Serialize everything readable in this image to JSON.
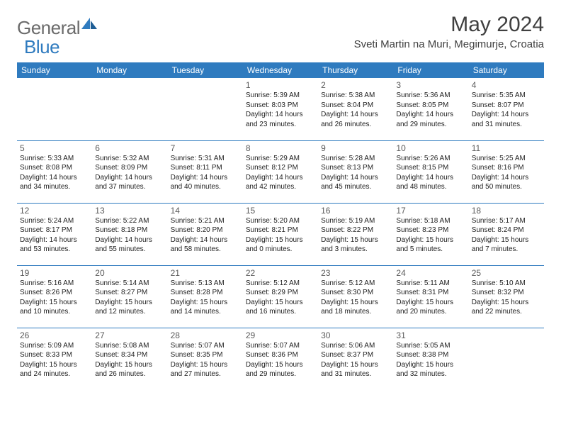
{
  "logo": {
    "part1": "General",
    "part2": "Blue"
  },
  "header": {
    "month_title": "May 2024",
    "location": "Sveti Martin na Muri, Megimurje, Croatia"
  },
  "colors": {
    "header_bg": "#2f7bbf",
    "header_text": "#ffffff",
    "rule": "#2f7bbf",
    "logo_gray": "#6b6b6b",
    "logo_blue": "#2f7bbf",
    "title_color": "#404040"
  },
  "weekdays": [
    "Sunday",
    "Monday",
    "Tuesday",
    "Wednesday",
    "Thursday",
    "Friday",
    "Saturday"
  ],
  "weeks": [
    [
      null,
      null,
      null,
      {
        "n": "1",
        "sr": "5:39 AM",
        "ss": "8:03 PM",
        "dh": "14",
        "dm": "23"
      },
      {
        "n": "2",
        "sr": "5:38 AM",
        "ss": "8:04 PM",
        "dh": "14",
        "dm": "26"
      },
      {
        "n": "3",
        "sr": "5:36 AM",
        "ss": "8:05 PM",
        "dh": "14",
        "dm": "29"
      },
      {
        "n": "4",
        "sr": "5:35 AM",
        "ss": "8:07 PM",
        "dh": "14",
        "dm": "31"
      }
    ],
    [
      {
        "n": "5",
        "sr": "5:33 AM",
        "ss": "8:08 PM",
        "dh": "14",
        "dm": "34"
      },
      {
        "n": "6",
        "sr": "5:32 AM",
        "ss": "8:09 PM",
        "dh": "14",
        "dm": "37"
      },
      {
        "n": "7",
        "sr": "5:31 AM",
        "ss": "8:11 PM",
        "dh": "14",
        "dm": "40"
      },
      {
        "n": "8",
        "sr": "5:29 AM",
        "ss": "8:12 PM",
        "dh": "14",
        "dm": "42"
      },
      {
        "n": "9",
        "sr": "5:28 AM",
        "ss": "8:13 PM",
        "dh": "14",
        "dm": "45"
      },
      {
        "n": "10",
        "sr": "5:26 AM",
        "ss": "8:15 PM",
        "dh": "14",
        "dm": "48"
      },
      {
        "n": "11",
        "sr": "5:25 AM",
        "ss": "8:16 PM",
        "dh": "14",
        "dm": "50"
      }
    ],
    [
      {
        "n": "12",
        "sr": "5:24 AM",
        "ss": "8:17 PM",
        "dh": "14",
        "dm": "53"
      },
      {
        "n": "13",
        "sr": "5:22 AM",
        "ss": "8:18 PM",
        "dh": "14",
        "dm": "55"
      },
      {
        "n": "14",
        "sr": "5:21 AM",
        "ss": "8:20 PM",
        "dh": "14",
        "dm": "58"
      },
      {
        "n": "15",
        "sr": "5:20 AM",
        "ss": "8:21 PM",
        "dh": "15",
        "dm": "0"
      },
      {
        "n": "16",
        "sr": "5:19 AM",
        "ss": "8:22 PM",
        "dh": "15",
        "dm": "3"
      },
      {
        "n": "17",
        "sr": "5:18 AM",
        "ss": "8:23 PM",
        "dh": "15",
        "dm": "5"
      },
      {
        "n": "18",
        "sr": "5:17 AM",
        "ss": "8:24 PM",
        "dh": "15",
        "dm": "7"
      }
    ],
    [
      {
        "n": "19",
        "sr": "5:16 AM",
        "ss": "8:26 PM",
        "dh": "15",
        "dm": "10"
      },
      {
        "n": "20",
        "sr": "5:14 AM",
        "ss": "8:27 PM",
        "dh": "15",
        "dm": "12"
      },
      {
        "n": "21",
        "sr": "5:13 AM",
        "ss": "8:28 PM",
        "dh": "15",
        "dm": "14"
      },
      {
        "n": "22",
        "sr": "5:12 AM",
        "ss": "8:29 PM",
        "dh": "15",
        "dm": "16"
      },
      {
        "n": "23",
        "sr": "5:12 AM",
        "ss": "8:30 PM",
        "dh": "15",
        "dm": "18"
      },
      {
        "n": "24",
        "sr": "5:11 AM",
        "ss": "8:31 PM",
        "dh": "15",
        "dm": "20"
      },
      {
        "n": "25",
        "sr": "5:10 AM",
        "ss": "8:32 PM",
        "dh": "15",
        "dm": "22"
      }
    ],
    [
      {
        "n": "26",
        "sr": "5:09 AM",
        "ss": "8:33 PM",
        "dh": "15",
        "dm": "24"
      },
      {
        "n": "27",
        "sr": "5:08 AM",
        "ss": "8:34 PM",
        "dh": "15",
        "dm": "26"
      },
      {
        "n": "28",
        "sr": "5:07 AM",
        "ss": "8:35 PM",
        "dh": "15",
        "dm": "27"
      },
      {
        "n": "29",
        "sr": "5:07 AM",
        "ss": "8:36 PM",
        "dh": "15",
        "dm": "29"
      },
      {
        "n": "30",
        "sr": "5:06 AM",
        "ss": "8:37 PM",
        "dh": "15",
        "dm": "31"
      },
      {
        "n": "31",
        "sr": "5:05 AM",
        "ss": "8:38 PM",
        "dh": "15",
        "dm": "32"
      },
      null
    ]
  ],
  "labels": {
    "sunrise_prefix": "Sunrise: ",
    "sunset_prefix": "Sunset: ",
    "daylight_prefix": "Daylight: ",
    "hours_word": " hours",
    "and_word": "and ",
    "minutes_word": " minutes."
  }
}
